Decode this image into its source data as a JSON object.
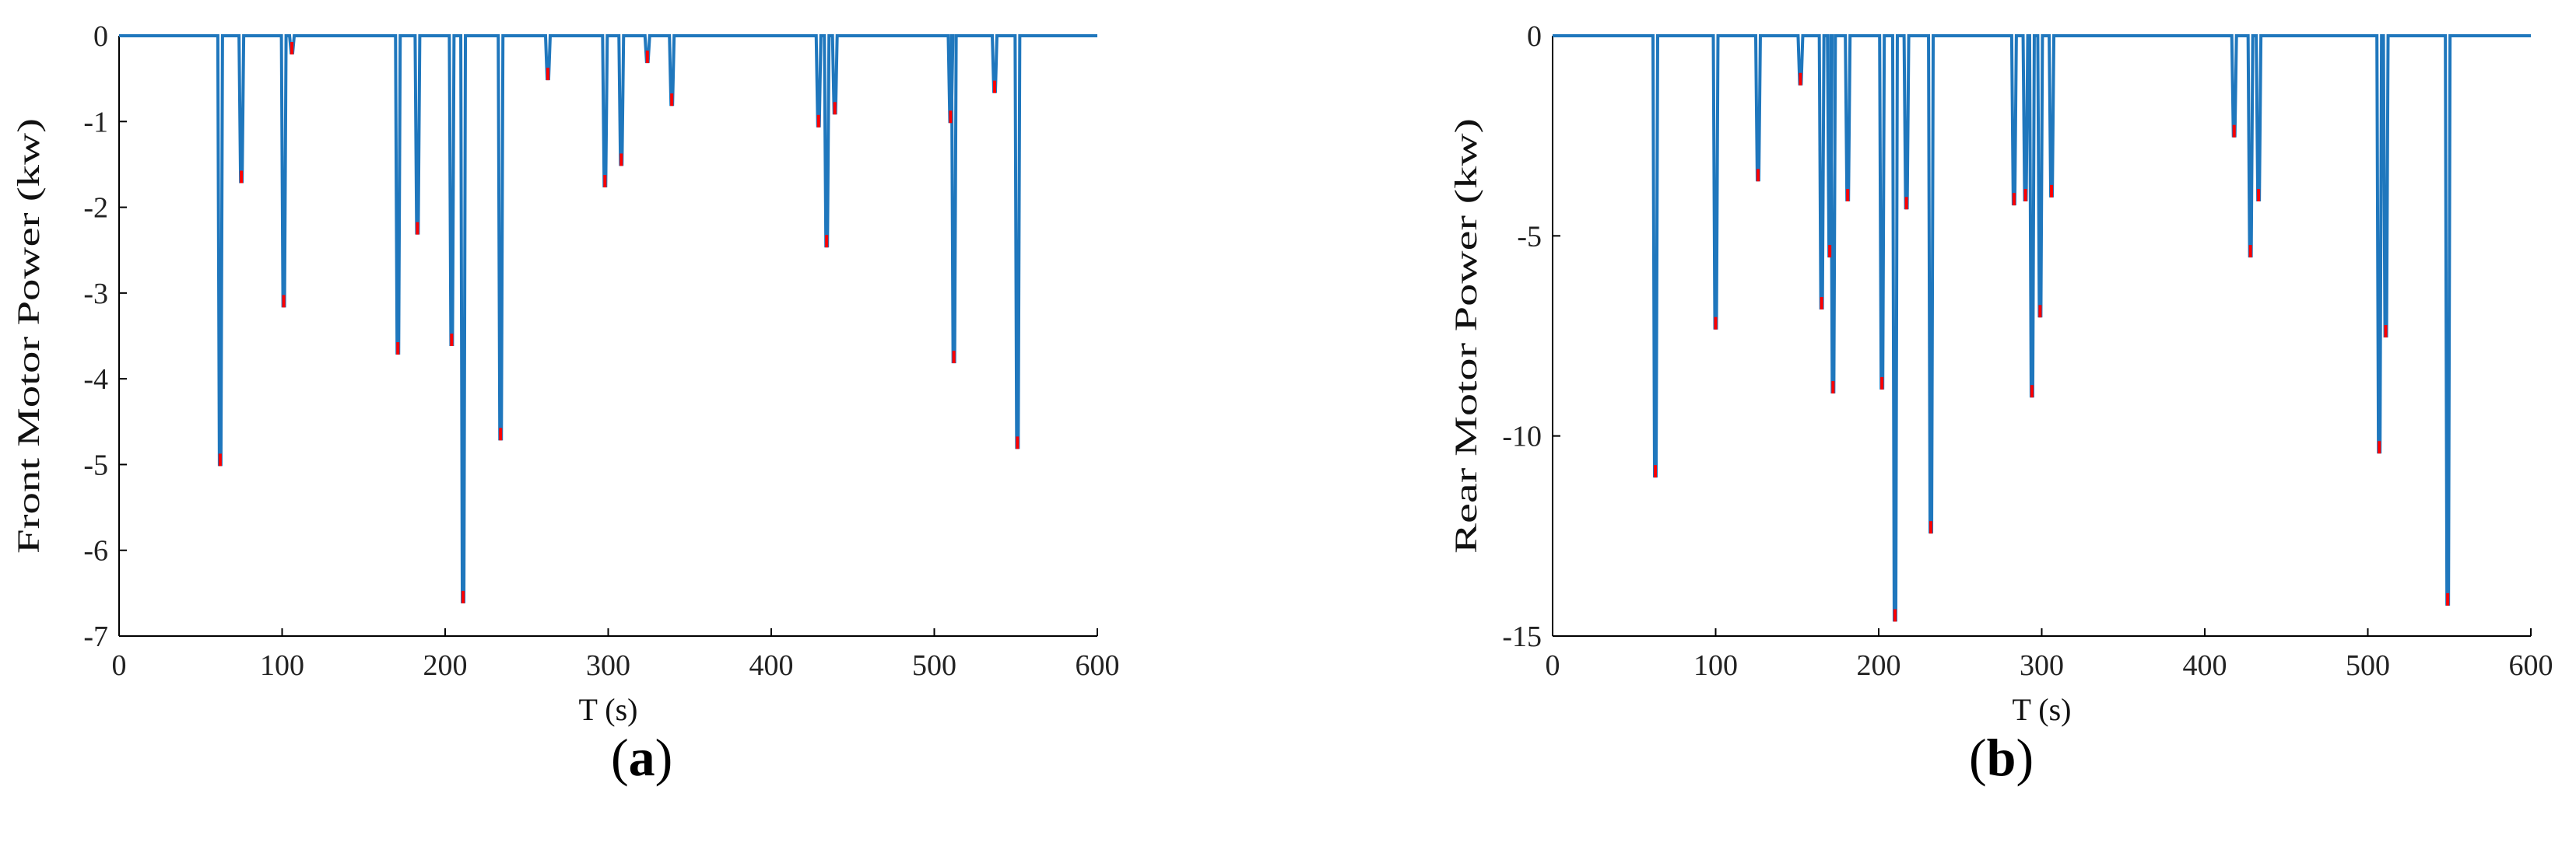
{
  "figure": {
    "panels": [
      {
        "caption_open": "(",
        "caption_letter": "a",
        "caption_close": ")"
      },
      {
        "caption_open": "(",
        "caption_letter": "b",
        "caption_close": ")"
      }
    ]
  },
  "colors": {
    "series": "#1f77bd",
    "peak": "#ff0000",
    "axis": "#000000"
  },
  "chart_data": [
    {
      "type": "line",
      "title": "",
      "xlabel": "T (s)",
      "ylabel": "Front Motor Power (kw)",
      "xlim": [
        0,
        600
      ],
      "ylim": [
        -7,
        0
      ],
      "xticks": [
        0,
        100,
        200,
        300,
        400,
        500,
        600
      ],
      "yticks": [
        0,
        -1,
        -2,
        -3,
        -4,
        -5,
        -6,
        -7
      ],
      "grid": false,
      "baseline": 0,
      "dips": [
        {
          "x": 62,
          "y": -5.0
        },
        {
          "x": 75,
          "y": -1.7
        },
        {
          "x": 101,
          "y": -3.15
        },
        {
          "x": 106,
          "y": -0.2
        },
        {
          "x": 171,
          "y": -3.7
        },
        {
          "x": 183,
          "y": -2.3
        },
        {
          "x": 204,
          "y": -3.6
        },
        {
          "x": 211,
          "y": -6.6
        },
        {
          "x": 234,
          "y": -4.7
        },
        {
          "x": 263,
          "y": -0.5
        },
        {
          "x": 298,
          "y": -1.75
        },
        {
          "x": 308,
          "y": -1.5
        },
        {
          "x": 324,
          "y": -0.3
        },
        {
          "x": 339,
          "y": -0.8
        },
        {
          "x": 429,
          "y": -1.05
        },
        {
          "x": 434,
          "y": -2.45
        },
        {
          "x": 439,
          "y": -0.9
        },
        {
          "x": 510,
          "y": -1.0
        },
        {
          "x": 512,
          "y": -3.8
        },
        {
          "x": 537,
          "y": -0.65
        },
        {
          "x": 551,
          "y": -4.8
        }
      ]
    },
    {
      "type": "line",
      "title": "",
      "xlabel": "T (s)",
      "ylabel": "Rear Motor Power (kw)",
      "xlim": [
        0,
        600
      ],
      "ylim": [
        -15,
        0
      ],
      "xticks": [
        0,
        100,
        200,
        300,
        400,
        500,
        600
      ],
      "yticks": [
        0,
        -5,
        -10,
        -15
      ],
      "grid": false,
      "baseline": 0,
      "dips": [
        {
          "x": 63,
          "y": -11.0
        },
        {
          "x": 100,
          "y": -7.3
        },
        {
          "x": 126,
          "y": -3.6
        },
        {
          "x": 152,
          "y": -1.2
        },
        {
          "x": 165,
          "y": -6.8
        },
        {
          "x": 170,
          "y": -5.5
        },
        {
          "x": 172,
          "y": -8.9
        },
        {
          "x": 181,
          "y": -4.1
        },
        {
          "x": 202,
          "y": -8.8
        },
        {
          "x": 210,
          "y": -14.6
        },
        {
          "x": 217,
          "y": -4.3
        },
        {
          "x": 232,
          "y": -12.4
        },
        {
          "x": 283,
          "y": -4.2
        },
        {
          "x": 290,
          "y": -4.1
        },
        {
          "x": 294,
          "y": -9.0
        },
        {
          "x": 299,
          "y": -7.0
        },
        {
          "x": 306,
          "y": -4.0
        },
        {
          "x": 418,
          "y": -2.5
        },
        {
          "x": 428,
          "y": -5.5
        },
        {
          "x": 433,
          "y": -4.1
        },
        {
          "x": 507,
          "y": -10.4
        },
        {
          "x": 511,
          "y": -7.5
        },
        {
          "x": 549,
          "y": -14.2
        }
      ]
    }
  ]
}
